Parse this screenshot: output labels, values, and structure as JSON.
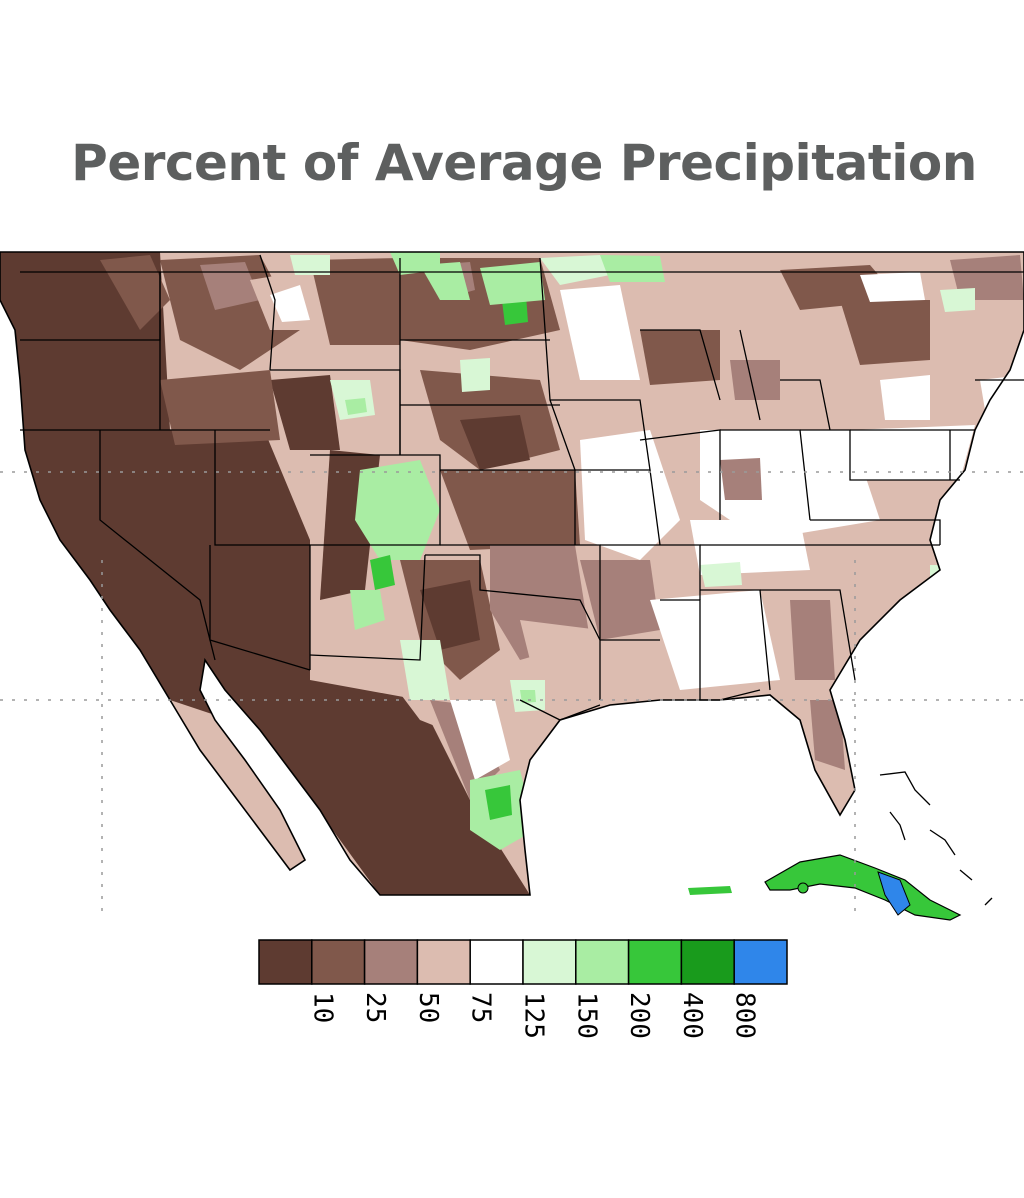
{
  "title": "Percent of Average Precipitation",
  "legend": {
    "classes": [
      {
        "label": "10",
        "color": "#5e3b31"
      },
      {
        "label": "25",
        "color": "#80584b"
      },
      {
        "label": "50",
        "color": "#a6807a"
      },
      {
        "label": "75",
        "color": "#dcbcb0"
      },
      {
        "label": "125",
        "color": "#ffffff"
      },
      {
        "label": "150",
        "color": "#d8f7d5"
      },
      {
        "label": "200",
        "color": "#a9eda3"
      },
      {
        "label": "400",
        "color": "#37c73a"
      },
      {
        "label": "800",
        "color": "#199b1c"
      }
    ],
    "top_color": "#2f86ea",
    "label_orientation": "rotated-90-clockwise"
  },
  "map": {
    "region": "Contiguous United States, northern Mexico, southern Canada, Cuba",
    "dominant_pattern": "well below average (brown) in the West and Southwest; near average (white) in the Midwest and Northeast; above average (green) in the central Rockies, northern Plains border and southern Texas coast; highest (blue) over eastern Cuba",
    "gridlines": "dotted"
  }
}
